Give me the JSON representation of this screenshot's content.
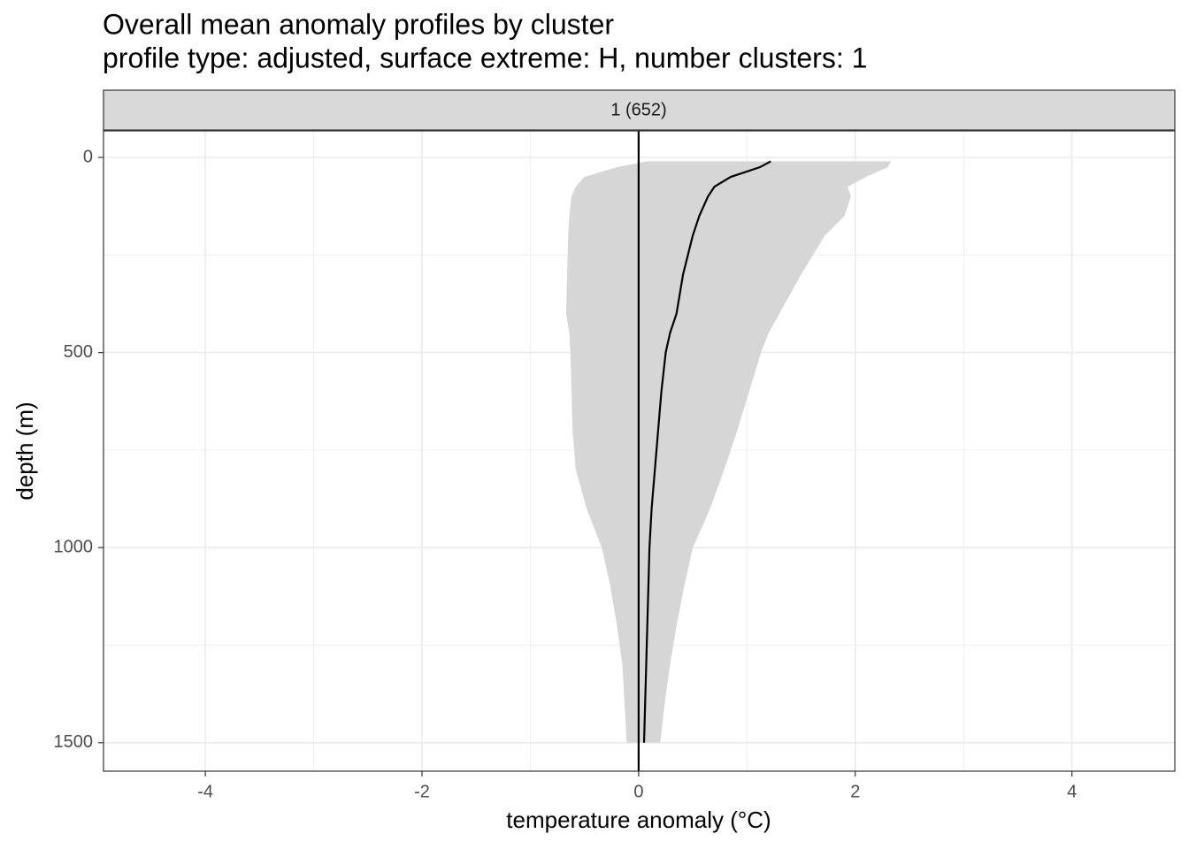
{
  "chart_data": {
    "type": "profile",
    "title": "Overall mean anomaly profiles by cluster",
    "subtitle": "profile type: adjusted, surface extreme: H, number clusters: 1",
    "facet_label": "1 (652)",
    "x_label": "temperature anomaly (°C)",
    "y_label": "depth (m)",
    "xlim": [
      -4.94,
      4.95
    ],
    "xticks": [
      -4,
      -2,
      0,
      2,
      4
    ],
    "minor_xticks": [
      -3,
      -1,
      1,
      3
    ],
    "ylim": [
      -68,
      1573
    ],
    "y_reversed": true,
    "yticks": [
      0,
      500,
      1000,
      1500
    ],
    "minor_yticks": [
      250,
      750,
      1250
    ],
    "grid": true,
    "vline": 0,
    "line_color": "#000000",
    "ribbon_color": "#d6d6d6",
    "depth": [
      10,
      25,
      50,
      75,
      100,
      150,
      200,
      300,
      400,
      450,
      500,
      600,
      700,
      800,
      900,
      1000,
      1100,
      1200,
      1300,
      1400,
      1500
    ],
    "mean": [
      1.22,
      1.12,
      0.85,
      0.7,
      0.64,
      0.56,
      0.5,
      0.41,
      0.35,
      0.29,
      0.25,
      0.21,
      0.18,
      0.15,
      0.12,
      0.1,
      0.09,
      0.08,
      0.07,
      0.06,
      0.05
    ],
    "ribbon_lower": [
      0.08,
      -0.2,
      -0.5,
      -0.58,
      -0.62,
      -0.64,
      -0.65,
      -0.66,
      -0.67,
      -0.64,
      -0.63,
      -0.62,
      -0.61,
      -0.58,
      -0.48,
      -0.34,
      -0.26,
      -0.2,
      -0.15,
      -0.13,
      -0.11
    ],
    "ribbon_upper": [
      2.33,
      2.3,
      2.1,
      1.93,
      1.96,
      1.9,
      1.72,
      1.5,
      1.3,
      1.2,
      1.13,
      1.02,
      0.91,
      0.79,
      0.66,
      0.5,
      0.42,
      0.35,
      0.29,
      0.24,
      0.2
    ]
  }
}
